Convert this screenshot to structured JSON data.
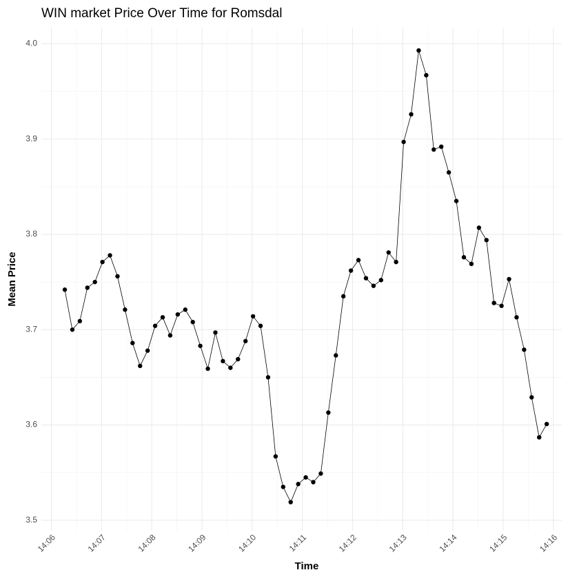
{
  "chart_data": {
    "type": "line",
    "title": "WIN market Price Over Time for Romsdal",
    "x_label": "Time",
    "y_label": "Mean Price",
    "x": [
      "14:06:16",
      "14:06:25",
      "14:06:34",
      "14:06:43",
      "14:06:52",
      "14:07:01",
      "14:07:10",
      "14:07:19",
      "14:07:28",
      "14:07:37",
      "14:07:46",
      "14:07:55",
      "14:08:04",
      "14:08:13",
      "14:08:22",
      "14:08:31",
      "14:08:40",
      "14:08:49",
      "14:08:58",
      "14:09:07",
      "14:09:16",
      "14:09:25",
      "14:09:34",
      "14:09:43",
      "14:09:52",
      "14:10:01",
      "14:10:10",
      "14:10:19",
      "14:10:28",
      "14:10:37",
      "14:10:46",
      "14:10:55",
      "14:11:04",
      "14:11:13",
      "14:11:22",
      "14:11:31",
      "14:11:40",
      "14:11:49",
      "14:11:58",
      "14:12:07",
      "14:12:16",
      "14:12:25",
      "14:12:34",
      "14:12:43",
      "14:12:52",
      "14:13:01",
      "14:13:10",
      "14:13:19",
      "14:13:28",
      "14:13:37",
      "14:13:46",
      "14:13:55",
      "14:14:04",
      "14:14:13",
      "14:14:22",
      "14:14:31",
      "14:14:40",
      "14:14:49",
      "14:14:58",
      "14:15:07",
      "14:15:16",
      "14:15:25",
      "14:15:34",
      "14:15:43",
      "14:15:52"
    ],
    "series": [
      {
        "name": "Mean Price",
        "color": "#000000",
        "values": [
          3.742,
          3.7,
          3.709,
          3.744,
          3.75,
          3.771,
          3.778,
          3.756,
          3.721,
          3.686,
          3.662,
          3.678,
          3.704,
          3.713,
          3.694,
          3.716,
          3.721,
          3.708,
          3.683,
          3.659,
          3.697,
          3.667,
          3.66,
          3.669,
          3.688,
          3.714,
          3.704,
          3.65,
          3.567,
          3.535,
          3.519,
          3.538,
          3.545,
          3.54,
          3.549,
          3.613,
          3.673,
          3.735,
          3.762,
          3.773,
          3.754,
          3.746,
          3.752,
          3.781,
          3.771,
          3.897,
          3.926,
          3.993,
          3.967,
          3.889,
          3.892,
          3.865,
          3.835,
          3.776,
          3.769,
          3.807,
          3.794,
          3.728,
          3.725,
          3.753,
          3.713,
          3.679,
          3.629,
          3.587,
          3.601
        ]
      }
    ],
    "xlim": [
      "14:05:48",
      "14:16:10"
    ],
    "xticks": [
      "14:06",
      "14:07",
      "14:08",
      "14:09",
      "14:10",
      "14:11",
      "14:12",
      "14:13",
      "14:14",
      "14:15",
      "14:16"
    ],
    "ylim": [
      3.489,
      4.017
    ],
    "yticks": [
      3.5,
      3.6,
      3.7,
      3.8,
      3.9,
      {
        "value": 4,
        "label": "4.0"
      }
    ],
    "grid": true
  }
}
